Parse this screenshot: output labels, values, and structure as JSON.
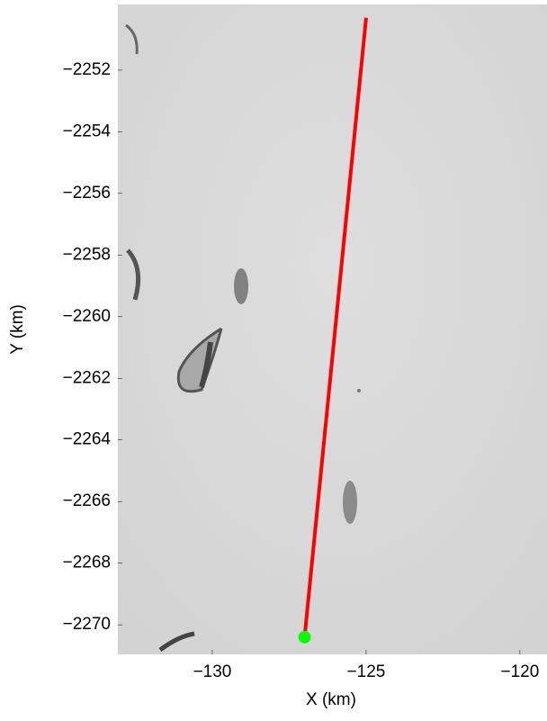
{
  "chart_data": {
    "type": "line",
    "xlabel": "X (km)",
    "ylabel": "Y (km)",
    "x": [
      -127.0,
      -125.0
    ],
    "series": [
      {
        "color": "#ff0000",
        "values": [
          -2270.4,
          -2250.3
        ]
      }
    ],
    "marker": {
      "x": -127.0,
      "y": -2270.4,
      "color": "#00ff00"
    },
    "xlim": [
      -133.07,
      -119.12
    ],
    "ylim": [
      -2270.96,
      -2249.87
    ],
    "xticks": [
      {
        "value": -130,
        "label": "−130"
      },
      {
        "value": -125,
        "label": "−125"
      },
      {
        "value": -120,
        "label": "−120"
      }
    ],
    "yticks": [
      {
        "value": -2252,
        "label": "−2252"
      },
      {
        "value": -2254,
        "label": "−2254"
      },
      {
        "value": -2256,
        "label": "−2256"
      },
      {
        "value": -2258,
        "label": "−2258"
      },
      {
        "value": -2260,
        "label": "−2260"
      },
      {
        "value": -2262,
        "label": "−2262"
      },
      {
        "value": -2264,
        "label": "−2264"
      },
      {
        "value": -2266,
        "label": "−2266"
      },
      {
        "value": -2268,
        "label": "−2268"
      },
      {
        "value": -2270,
        "label": "−2270"
      }
    ]
  }
}
